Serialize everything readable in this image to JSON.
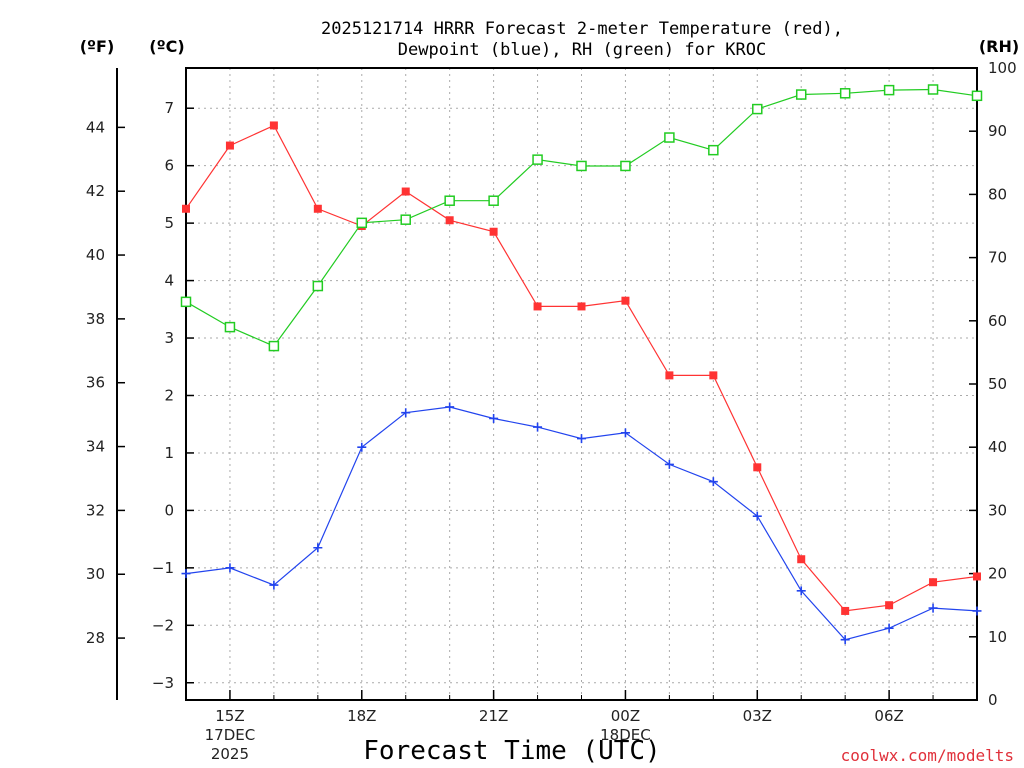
{
  "chart_data": {
    "type": "line",
    "title_line1": "2025121714 HRRR Forecast 2-meter Temperature (red),",
    "title_line2": "Dewpoint (blue), RH (green) for KROC",
    "xlabel": "Forecast Time (UTC)",
    "credit": "coolwx.com/modelts",
    "units": {
      "fahrenheit": "(ºF)",
      "celsius": "(ºC)",
      "rh": "(RH)"
    },
    "x_hours": [
      14,
      15,
      16,
      17,
      18,
      19,
      20,
      21,
      22,
      23,
      24,
      25,
      26,
      27,
      28,
      29,
      30,
      31,
      32
    ],
    "x_ticks": [
      {
        "hour": 15,
        "lines": [
          "15Z",
          "17DEC",
          "2025"
        ]
      },
      {
        "hour": 18,
        "lines": [
          "18Z"
        ]
      },
      {
        "hour": 21,
        "lines": [
          "21Z"
        ]
      },
      {
        "hour": 24,
        "lines": [
          "00Z",
          "18DEC"
        ]
      },
      {
        "hour": 27,
        "lines": [
          "03Z"
        ]
      },
      {
        "hour": 30,
        "lines": [
          "06Z"
        ]
      }
    ],
    "celsius_axis": {
      "min": -3.3,
      "max": 7.7,
      "ticks": [
        -3,
        -2,
        -1,
        0,
        1,
        2,
        3,
        4,
        5,
        6,
        7
      ]
    },
    "fahrenheit_ticks": [
      28,
      30,
      32,
      34,
      36,
      38,
      40,
      42,
      44
    ],
    "rh_axis": {
      "min": 0,
      "max": 100,
      "ticks": [
        0,
        10,
        20,
        30,
        40,
        50,
        60,
        70,
        80,
        90,
        100
      ]
    },
    "series": [
      {
        "name": "Temperature",
        "unit": "C",
        "color": "#ff3333",
        "marker": "square-filled",
        "values": [
          5.25,
          6.35,
          6.7,
          5.25,
          4.95,
          5.55,
          5.05,
          4.85,
          3.55,
          3.55,
          3.65,
          2.35,
          2.35,
          0.75,
          -0.85,
          -1.75,
          -1.65,
          -1.25,
          -1.15
        ]
      },
      {
        "name": "Dewpoint",
        "unit": "C",
        "color": "#2244ee",
        "marker": "plus",
        "values": [
          -1.1,
          -1.0,
          -1.3,
          -0.65,
          1.1,
          1.7,
          1.8,
          1.6,
          1.45,
          1.25,
          1.35,
          0.8,
          0.5,
          -0.1,
          -1.4,
          -2.25,
          -2.05,
          -1.7,
          -1.75
        ]
      },
      {
        "name": "RH",
        "unit": "%",
        "color": "#22cc22",
        "marker": "square-open",
        "values": [
          63,
          59,
          56,
          65.5,
          75.5,
          76,
          79,
          79,
          85.5,
          84.5,
          84.5,
          89,
          87,
          93.5,
          95.8,
          96,
          96.5,
          96.6,
          95.6
        ]
      }
    ]
  }
}
